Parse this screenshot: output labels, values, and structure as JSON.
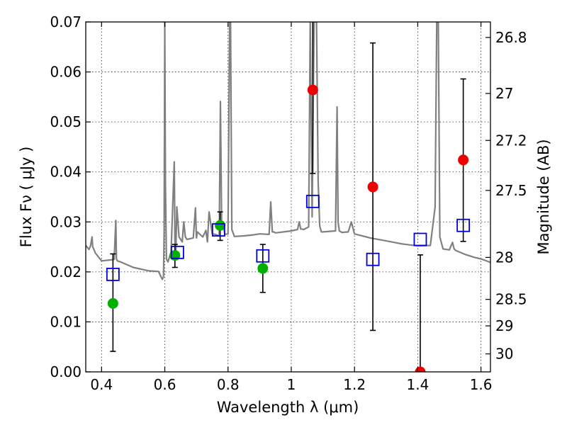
{
  "chart_data": {
    "type": "scatter",
    "title": "",
    "xlabel": "Wavelength  λ (μm)",
    "ylabel": "Flux  Fν  ( μJy )",
    "ylabel_right": "Magnitude (AB)",
    "xlim": [
      0.35,
      1.63
    ],
    "ylim": [
      0,
      0.07
    ],
    "grid": true,
    "x_ticks": [
      0.4,
      0.6,
      0.8,
      1.0,
      1.2,
      1.4,
      1.6
    ],
    "x_tick_labels": [
      "0.4",
      "0.6",
      "0.8",
      "1",
      "1.2",
      "1.4",
      "1.6"
    ],
    "y_ticks": [
      0.0,
      0.01,
      0.02,
      0.03,
      0.04,
      0.05,
      0.06,
      0.07
    ],
    "y_tick_labels": [
      "0.00",
      "0.01",
      "0.02",
      "0.03",
      "0.04",
      "0.05",
      "0.06",
      "0.07"
    ],
    "right_ticks": [
      {
        "flux": 0.0669,
        "label": "26.8"
      },
      {
        "flux": 0.0557,
        "label": "27"
      },
      {
        "flux": 0.0463,
        "label": "27.2"
      },
      {
        "flux": 0.0363,
        "label": "27.5"
      },
      {
        "flux": 0.0229,
        "label": "28"
      },
      {
        "flux": 0.0145,
        "label": "28.5"
      },
      {
        "flux": 0.0092,
        "label": "29"
      },
      {
        "flux": 0.0036,
        "label": "30"
      }
    ],
    "series": [
      {
        "marker": "circle",
        "color": "#00b000",
        "points": [
          {
            "x": 0.436,
            "y": 0.0137,
            "yerr_low": 0.0041,
            "yerr_high": 0.0236
          },
          {
            "x": 0.632,
            "y": 0.0233,
            "yerr_low": 0.0209,
            "yerr_high": 0.0255
          },
          {
            "x": 0.775,
            "y": 0.0293,
            "yerr_low": 0.0263,
            "yerr_high": 0.032
          },
          {
            "x": 0.91,
            "y": 0.0207,
            "yerr_low": 0.0159,
            "yerr_high": 0.0255
          }
        ]
      },
      {
        "marker": "circle",
        "color": "#ee0000",
        "points": [
          {
            "x": 1.068,
            "y": 0.0564,
            "yerr_low": 0.0397,
            "yerr_high": 0.07
          },
          {
            "x": 1.258,
            "y": 0.037,
            "yerr_low": 0.0083,
            "yerr_high": 0.0658
          },
          {
            "x": 1.408,
            "y": 0.0,
            "yerr_low": 0.0,
            "yerr_high": 0.0234
          },
          {
            "x": 1.544,
            "y": 0.0424,
            "yerr_low": 0.0261,
            "yerr_high": 0.0586
          }
        ]
      },
      {
        "marker": "square-open",
        "color": "#0000dd",
        "points": [
          {
            "x": 0.436,
            "y": 0.0195
          },
          {
            "x": 0.64,
            "y": 0.0239
          },
          {
            "x": 0.77,
            "y": 0.0284
          },
          {
            "x": 0.91,
            "y": 0.0232
          },
          {
            "x": 1.068,
            "y": 0.0341
          },
          {
            "x": 1.258,
            "y": 0.0225
          },
          {
            "x": 1.408,
            "y": 0.0265
          },
          {
            "x": 1.544,
            "y": 0.0293
          }
        ]
      },
      {
        "type": "line",
        "color": "#808080",
        "x": [
          0.35,
          0.36,
          0.365,
          0.37,
          0.372,
          0.375,
          0.38,
          0.4,
          0.43,
          0.44,
          0.445,
          0.447,
          0.45,
          0.46,
          0.5,
          0.55,
          0.58,
          0.592,
          0.596,
          0.598,
          0.6,
          0.602,
          0.605,
          0.61,
          0.62,
          0.63,
          0.632,
          0.635,
          0.638,
          0.645,
          0.655,
          0.66,
          0.665,
          0.67,
          0.69,
          0.697,
          0.7,
          0.703,
          0.72,
          0.73,
          0.735,
          0.74,
          0.75,
          0.76,
          0.772,
          0.776,
          0.78,
          0.784,
          0.79,
          0.8,
          0.805,
          0.808,
          0.812,
          0.82,
          0.85,
          0.88,
          0.9,
          0.93,
          0.935,
          0.94,
          0.945,
          0.95,
          1.0,
          1.02,
          1.025,
          1.03,
          1.04,
          1.055,
          1.06,
          1.066,
          1.072,
          1.08,
          1.085,
          1.09,
          1.095,
          1.1,
          1.14,
          1.145,
          1.148,
          1.152,
          1.16,
          1.18,
          1.19,
          1.2,
          1.25,
          1.3,
          1.35,
          1.4,
          1.44,
          1.455,
          1.46,
          1.465,
          1.47,
          1.48,
          1.5,
          1.51,
          1.515,
          1.52,
          1.55,
          1.58,
          1.6,
          1.63
        ],
        "y": [
          0.0253,
          0.0245,
          0.0252,
          0.027,
          0.025,
          0.0246,
          0.0238,
          0.0222,
          0.0224,
          0.0225,
          0.0303,
          0.0226,
          0.0222,
          0.022,
          0.0209,
          0.0202,
          0.0201,
          0.0185,
          0.019,
          0.028,
          0.07,
          0.038,
          0.0226,
          0.022,
          0.024,
          0.042,
          0.026,
          0.024,
          0.033,
          0.027,
          0.026,
          0.03,
          0.027,
          0.0265,
          0.0268,
          0.0328,
          0.0268,
          0.028,
          0.027,
          0.0283,
          0.026,
          0.032,
          0.0276,
          0.0275,
          0.0272,
          0.0541,
          0.029,
          0.03,
          0.0275,
          0.0276,
          0.07,
          0.07,
          0.0285,
          0.0271,
          0.0272,
          0.0274,
          0.0276,
          0.0275,
          0.034,
          0.028,
          0.028,
          0.0278,
          0.0282,
          0.0285,
          0.03,
          0.0286,
          0.0285,
          0.029,
          0.07,
          0.031,
          0.07,
          0.07,
          0.038,
          0.0292,
          0.028,
          0.028,
          0.0282,
          0.053,
          0.03,
          0.0282,
          0.0279,
          0.028,
          0.03,
          0.0276,
          0.0268,
          0.0262,
          0.0256,
          0.0252,
          0.0253,
          0.033,
          0.07,
          0.07,
          0.027,
          0.0246,
          0.0244,
          0.0259,
          0.0246,
          0.0243,
          0.0235,
          0.0229,
          0.0226,
          0.0219
        ]
      }
    ]
  }
}
